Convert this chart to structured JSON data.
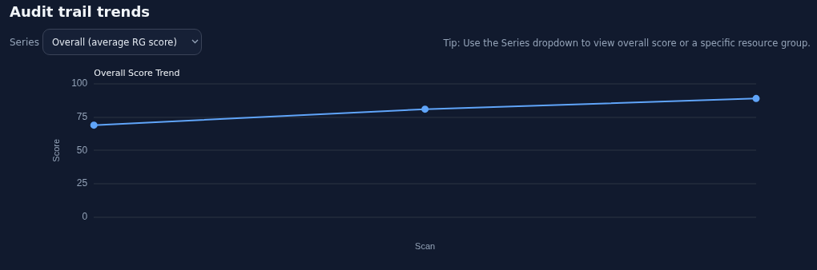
{
  "chart_data": {
    "type": "line",
    "title": "Audit trail trends",
    "subtitle": "Overall Score Trend",
    "xlabel": "Scan",
    "ylabel": "Score",
    "categories": [
      null,
      null,
      null
    ],
    "series": [
      {
        "color": "#60a5fa",
        "values": [
          69,
          81,
          89
        ]
      }
    ],
    "ylim": [
      0,
      100
    ],
    "yticks": [
      0,
      25,
      50,
      75,
      100
    ],
    "grid": "y",
    "legend": false,
    "marker": "circle",
    "line_style": "solid",
    "annotations": [
      "Series",
      "Overall (average RG score)",
      "Tip: Use the Series dropdown to view overall score or a specific resource group."
    ]
  }
}
